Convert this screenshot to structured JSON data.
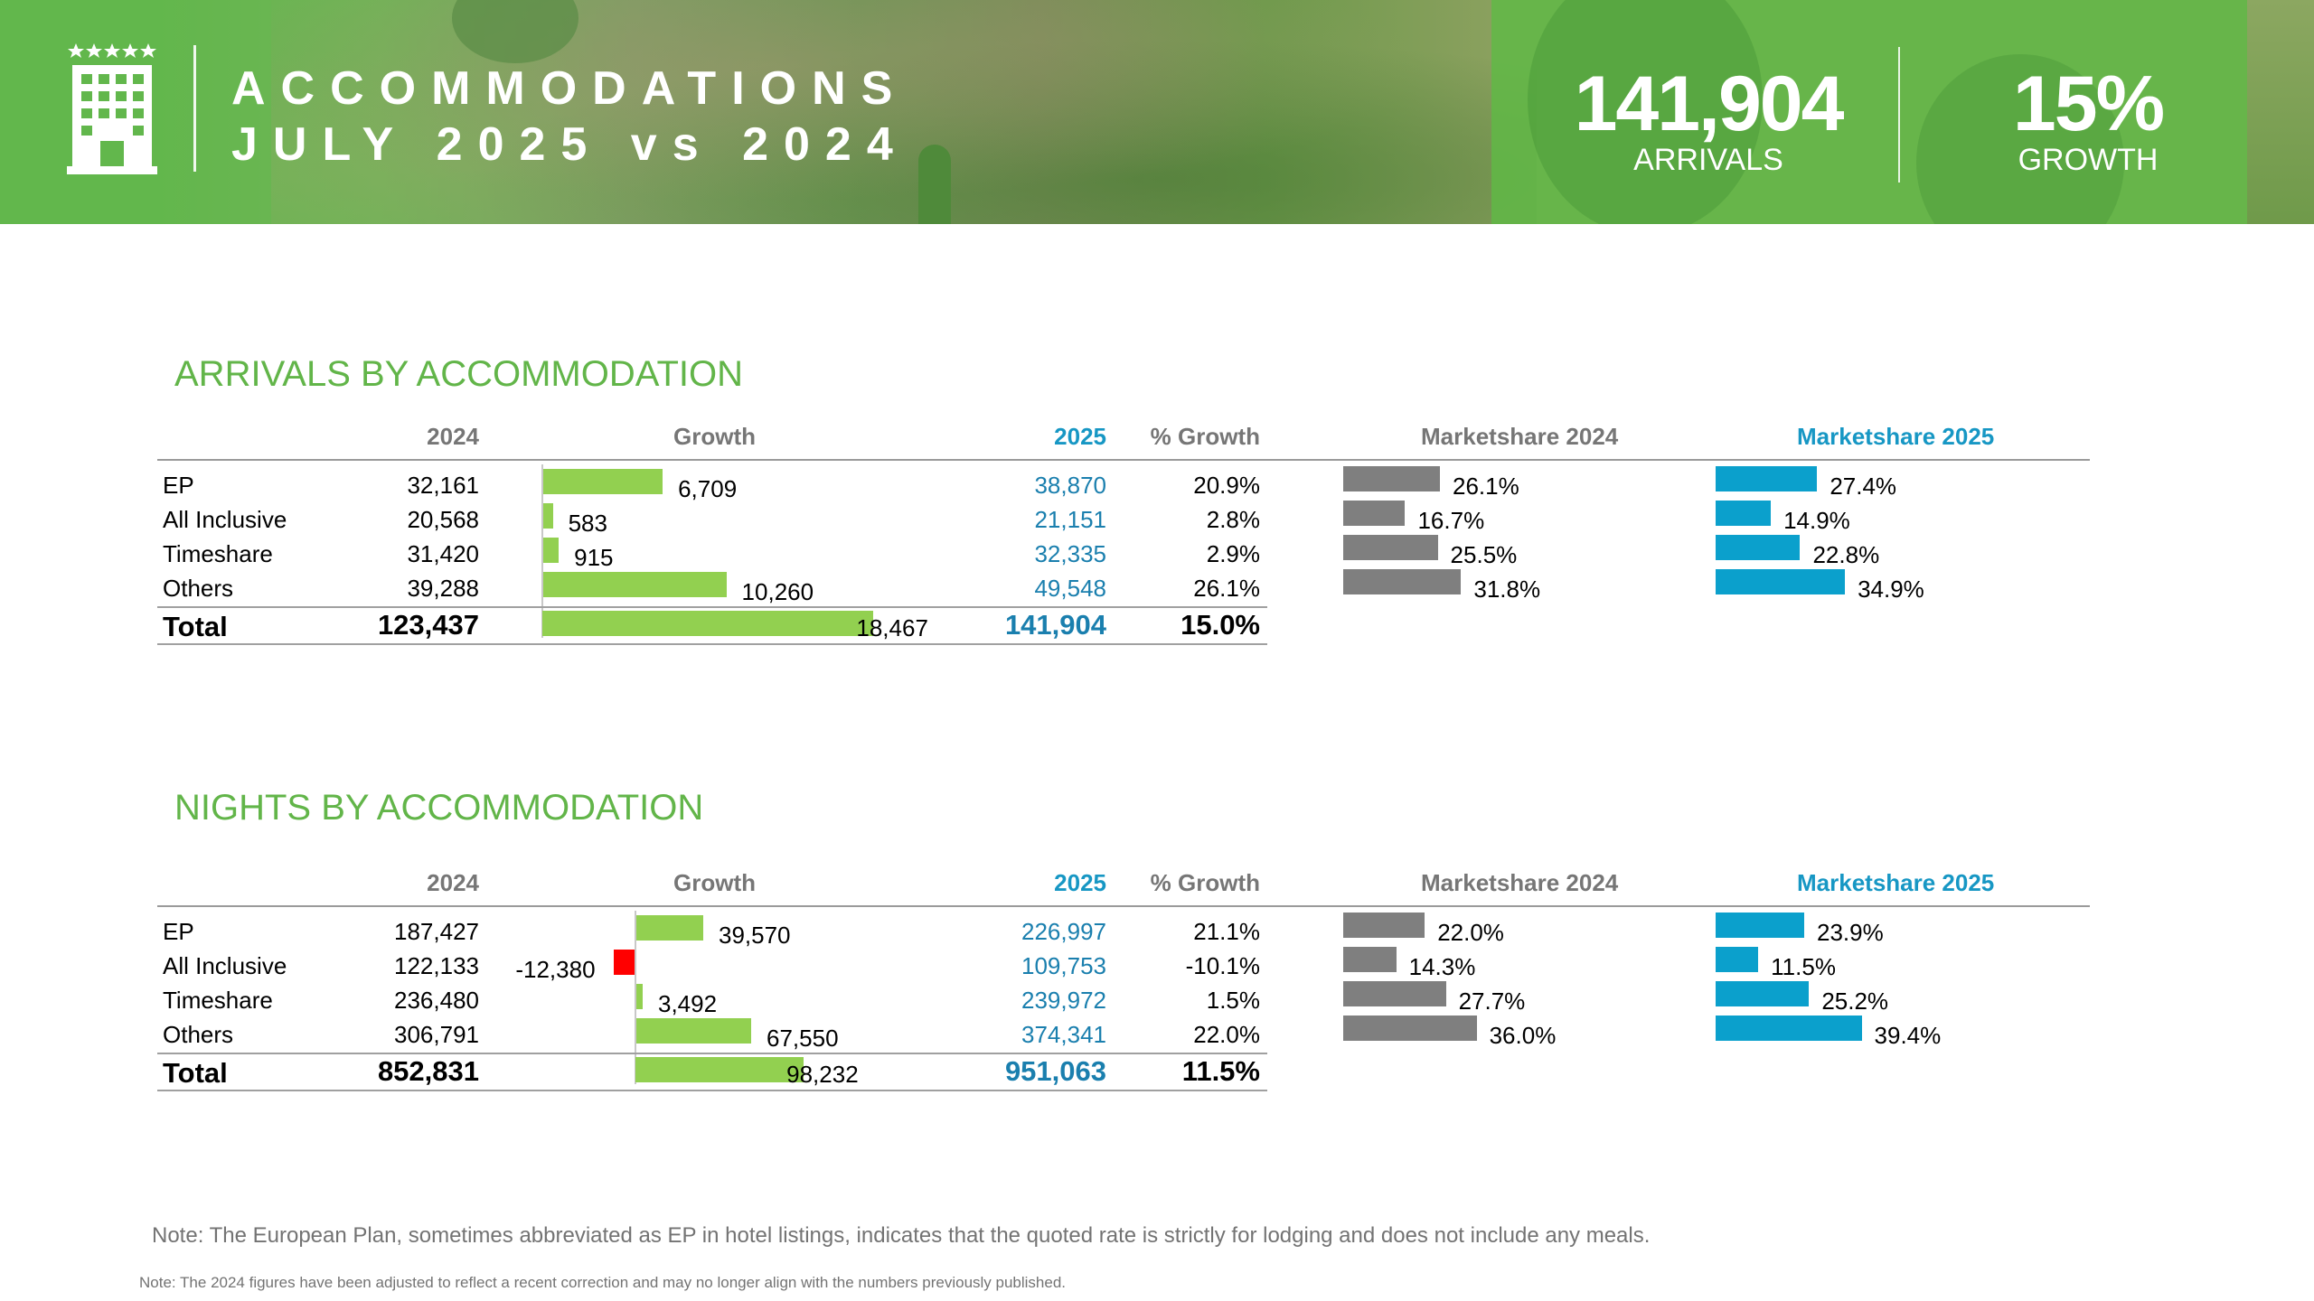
{
  "header": {
    "title_line1": "ACCOMMODATIONS",
    "title_line2": "JULY 2025 vs 2024",
    "kpis": [
      {
        "value": "141,904",
        "label": "ARRIVALS"
      },
      {
        "value": "15%",
        "label": "GROWTH"
      }
    ],
    "icon": "hotel-building-icon"
  },
  "colors": {
    "green_title": "#62b549",
    "growth_bar": "#92d050",
    "negative_bar": "#ff0000",
    "share_2024_bar": "#7f7f7f",
    "share_2025_bar": "#0ba0cc",
    "header_blue": "#1797c4"
  },
  "columns": {
    "y2024": "2024",
    "growth": "Growth",
    "y2025": "2025",
    "pct_growth": "% Growth",
    "share_2024": "Marketshare 2024",
    "share_2025": "Marketshare 2025"
  },
  "chart_data": [
    {
      "type": "table",
      "title": "ARRIVALS BY ACCOMMODATION",
      "categories": [
        "EP",
        "All Inclusive",
        "Timeshare",
        "Others"
      ],
      "values_2024": [
        "32,161",
        "20,568",
        "31,420",
        "39,288"
      ],
      "growth": [
        6709,
        583,
        915,
        10260
      ],
      "growth_labels": [
        "6,709",
        "583",
        "915",
        "10,260"
      ],
      "values_2025": [
        "38,870",
        "21,151",
        "32,335",
        "49,548"
      ],
      "pct_growth": [
        "20.9%",
        "2.8%",
        "2.9%",
        "26.1%"
      ],
      "share_2024": [
        26.1,
        16.7,
        25.5,
        31.8
      ],
      "share_2024_labels": [
        "26.1%",
        "16.7%",
        "25.5%",
        "31.8%"
      ],
      "share_2025": [
        27.4,
        14.9,
        22.8,
        34.9
      ],
      "share_2025_labels": [
        "27.4%",
        "14.9%",
        "22.8%",
        "34.9%"
      ],
      "total": {
        "label": "Total",
        "y2024": "123,437",
        "growth": 18467,
        "growth_label": "18,467",
        "y2025": "141,904",
        "pct_growth": "15.0%"
      }
    },
    {
      "type": "table",
      "title": "NIGHTS BY ACCOMMODATION",
      "categories": [
        "EP",
        "All Inclusive",
        "Timeshare",
        "Others"
      ],
      "values_2024": [
        "187,427",
        "122,133",
        "236,480",
        "306,791"
      ],
      "growth": [
        39570,
        -12380,
        3492,
        67550
      ],
      "growth_labels": [
        "39,570",
        "-12,380",
        "3,492",
        "67,550"
      ],
      "values_2025": [
        "226,997",
        "109,753",
        "239,972",
        "374,341"
      ],
      "pct_growth": [
        "21.1%",
        "-10.1%",
        "1.5%",
        "22.0%"
      ],
      "share_2024": [
        22.0,
        14.3,
        27.7,
        36.0
      ],
      "share_2024_labels": [
        "22.0%",
        "14.3%",
        "27.7%",
        "36.0%"
      ],
      "share_2025": [
        23.9,
        11.5,
        25.2,
        39.4
      ],
      "share_2025_labels": [
        "23.9%",
        "11.5%",
        "25.2%",
        "39.4%"
      ],
      "total": {
        "label": "Total",
        "y2024": "852,831",
        "growth": 98232,
        "growth_label": "98,232",
        "y2025": "951,063",
        "pct_growth": "11.5%"
      }
    }
  ],
  "notes": {
    "ep_note": "Note: The European Plan, sometimes abbreviated as EP in hotel listings, indicates that the quoted rate is strictly for lodging and does not include any meals.",
    "correction_note": "Note: The 2024 figures have been adjusted to reflect a recent correction and may no longer align with the numbers previously published."
  }
}
